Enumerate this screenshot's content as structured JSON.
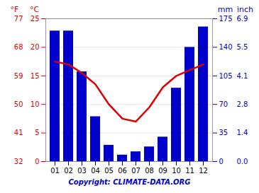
{
  "chart_data": {
    "type": "bar",
    "categories": [
      "01",
      "02",
      "03",
      "04",
      "05",
      "06",
      "07",
      "08",
      "09",
      "10",
      "11",
      "12"
    ],
    "series": [
      {
        "type": "bar",
        "axis": "y2",
        "color": "#0000cc",
        "values": [
          160,
          160,
          110,
          55,
          20,
          8,
          12,
          18,
          30,
          90,
          140,
          165
        ]
      },
      {
        "type": "line",
        "color": "#dd0000",
        "values": [
          17.5,
          17.0,
          15.5,
          13.5,
          10.0,
          7.5,
          7.0,
          9.5,
          13.0,
          15.0,
          16.0,
          17.0
        ]
      }
    ],
    "ylabel": "°C",
    "ylim": [
      0,
      25
    ],
    "yticks": [
      0,
      5,
      10,
      15,
      20,
      25
    ],
    "y3label": "°F",
    "y3ticks": [
      {
        "value": 0,
        "label": "32"
      },
      {
        "value": 5,
        "label": "41"
      },
      {
        "value": 10,
        "label": "50"
      },
      {
        "value": 15,
        "label": "59"
      },
      {
        "value": 20,
        "label": "68"
      },
      {
        "value": 25,
        "label": "77"
      }
    ],
    "y2label": "mm",
    "y2lim": [
      0,
      175
    ],
    "y2ticks": [
      0,
      35,
      70,
      105,
      140,
      175
    ],
    "y4label": "inch",
    "y4ticks": [
      {
        "value": 0,
        "label": "0.0"
      },
      {
        "value": 35,
        "label": "1.4"
      },
      {
        "value": 70,
        "label": "2.8"
      },
      {
        "value": 105,
        "label": "4.1"
      },
      {
        "value": 140,
        "label": "5.5"
      },
      {
        "value": 175,
        "label": "6.9"
      }
    ],
    "grid": true,
    "annotations": [
      {
        "text": "Copyright: CLIMATE-DATA.ORG",
        "color": "#0000cc"
      }
    ]
  }
}
